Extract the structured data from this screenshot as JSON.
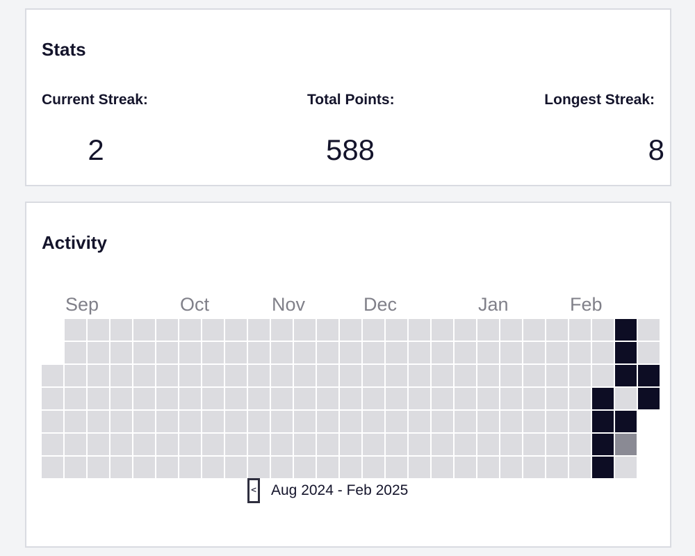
{
  "stats": {
    "title": "Stats",
    "current_streak_label": "Current Streak:",
    "current_streak_value": "2",
    "total_points_label": "Total Points:",
    "total_points_value": "588",
    "longest_streak_label": "Longest Streak:",
    "longest_streak_value": "8"
  },
  "activity": {
    "title": "Activity",
    "month_labels": [
      "Sep",
      "Oct",
      "Nov",
      "Dec",
      "Jan",
      "Feb"
    ],
    "range_label": "Aug 2024 - Feb 2025",
    "prev_label": "<",
    "colors": {
      "empty": "#dcdce0",
      "level1": "#8a8a94",
      "level2": "#0d0d24"
    }
  },
  "chart_data": {
    "type": "heatmap",
    "title": "",
    "period": "Aug 2024 - Feb 2025",
    "legend": "none",
    "weeks": 27,
    "days_per_week": 7,
    "month_labels": [
      {
        "label": "Sep",
        "week": 1
      },
      {
        "label": "Oct",
        "week": 6
      },
      {
        "label": "Nov",
        "week": 10
      },
      {
        "label": "Dec",
        "week": 14
      },
      {
        "label": "Jan",
        "week": 19
      },
      {
        "label": "Feb",
        "week": 23
      }
    ],
    "levels": [
      [
        null,
        null,
        0,
        0,
        0,
        0,
        0
      ],
      [
        0,
        0,
        0,
        0,
        0,
        0,
        0
      ],
      [
        0,
        0,
        0,
        0,
        0,
        0,
        0
      ],
      [
        0,
        0,
        0,
        0,
        0,
        0,
        0
      ],
      [
        0,
        0,
        0,
        0,
        0,
        0,
        0
      ],
      [
        0,
        0,
        0,
        0,
        0,
        0,
        0
      ],
      [
        0,
        0,
        0,
        0,
        0,
        0,
        0
      ],
      [
        0,
        0,
        0,
        0,
        0,
        0,
        0
      ],
      [
        0,
        0,
        0,
        0,
        0,
        0,
        0
      ],
      [
        0,
        0,
        0,
        0,
        0,
        0,
        0
      ],
      [
        0,
        0,
        0,
        0,
        0,
        0,
        0
      ],
      [
        0,
        0,
        0,
        0,
        0,
        0,
        0
      ],
      [
        0,
        0,
        0,
        0,
        0,
        0,
        0
      ],
      [
        0,
        0,
        0,
        0,
        0,
        0,
        0
      ],
      [
        0,
        0,
        0,
        0,
        0,
        0,
        0
      ],
      [
        0,
        0,
        0,
        0,
        0,
        0,
        0
      ],
      [
        0,
        0,
        0,
        0,
        0,
        0,
        0
      ],
      [
        0,
        0,
        0,
        0,
        0,
        0,
        0
      ],
      [
        0,
        0,
        0,
        0,
        0,
        0,
        0
      ],
      [
        0,
        0,
        0,
        0,
        0,
        0,
        0
      ],
      [
        0,
        0,
        0,
        0,
        0,
        0,
        0
      ],
      [
        0,
        0,
        0,
        0,
        0,
        0,
        0
      ],
      [
        0,
        0,
        0,
        0,
        0,
        0,
        0
      ],
      [
        0,
        0,
        0,
        0,
        0,
        0,
        0
      ],
      [
        0,
        0,
        0,
        2,
        2,
        2,
        2
      ],
      [
        2,
        2,
        2,
        0,
        2,
        1,
        0
      ],
      [
        0,
        0,
        2,
        2,
        null,
        null,
        null
      ]
    ]
  }
}
